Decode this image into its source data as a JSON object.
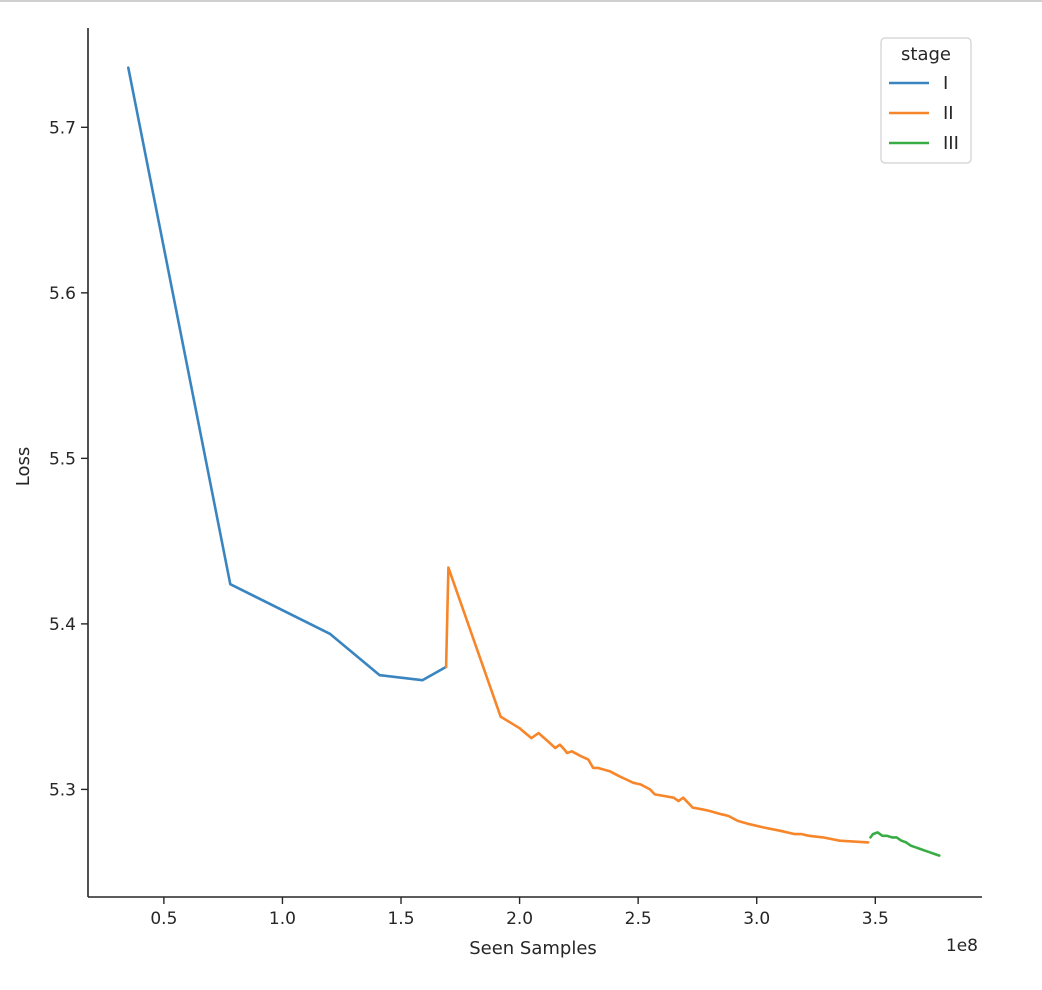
{
  "chart_data": {
    "type": "line",
    "xlabel": "Seen Samples",
    "ylabel": "Loss",
    "x_offset_label": "1e8",
    "x_scale": 100000000,
    "xlim": [
      0.18,
      3.95
    ],
    "ylim": [
      5.235,
      5.76
    ],
    "xticks": [
      0.5,
      1.0,
      1.5,
      2.0,
      2.5,
      3.0,
      3.5
    ],
    "xtick_labels": [
      "0.5",
      "1.0",
      "1.5",
      "2.0",
      "2.5",
      "3.0",
      "3.5"
    ],
    "yticks": [
      5.3,
      5.4,
      5.5,
      5.6,
      5.7
    ],
    "ytick_labels": [
      "5.3",
      "5.4",
      "5.5",
      "5.6",
      "5.7"
    ],
    "grid": false,
    "legend": {
      "title": "stage",
      "placement": "top-right"
    },
    "series": [
      {
        "name": "I",
        "color": "#3a85c0",
        "x": [
          0.35,
          0.78,
          1.2,
          1.41,
          1.59,
          1.69
        ],
        "y": [
          5.736,
          5.424,
          5.394,
          5.369,
          5.366,
          5.374
        ]
      },
      {
        "name": "II",
        "color": "#f7862a",
        "x": [
          1.69,
          1.7,
          1.92,
          2.0,
          2.05,
          2.08,
          2.12,
          2.15,
          2.17,
          2.19,
          2.2,
          2.22,
          2.26,
          2.29,
          2.31,
          2.33,
          2.38,
          2.42,
          2.45,
          2.48,
          2.51,
          2.55,
          2.57,
          2.61,
          2.65,
          2.67,
          2.69,
          2.71,
          2.73,
          2.77,
          2.8,
          2.85,
          2.88,
          2.92,
          2.97,
          3.03,
          3.1,
          3.16,
          3.19,
          3.22,
          3.28,
          3.35,
          3.47
        ],
        "y": [
          5.374,
          5.434,
          5.344,
          5.337,
          5.331,
          5.334,
          5.329,
          5.325,
          5.327,
          5.324,
          5.322,
          5.323,
          5.32,
          5.318,
          5.313,
          5.313,
          5.311,
          5.308,
          5.306,
          5.304,
          5.303,
          5.3,
          5.297,
          5.296,
          5.295,
          5.293,
          5.295,
          5.292,
          5.289,
          5.288,
          5.287,
          5.285,
          5.284,
          5.281,
          5.279,
          5.277,
          5.275,
          5.273,
          5.273,
          5.272,
          5.271,
          5.269,
          5.268
        ]
      },
      {
        "name": "III",
        "color": "#3aac45",
        "x": [
          3.48,
          3.49,
          3.51,
          3.53,
          3.55,
          3.57,
          3.59,
          3.61,
          3.63,
          3.65,
          3.67,
          3.69,
          3.71,
          3.73,
          3.75,
          3.77
        ],
        "y": [
          5.271,
          5.273,
          5.274,
          5.272,
          5.272,
          5.271,
          5.271,
          5.269,
          5.268,
          5.266,
          5.265,
          5.264,
          5.263,
          5.262,
          5.261,
          5.26
        ]
      }
    ]
  }
}
